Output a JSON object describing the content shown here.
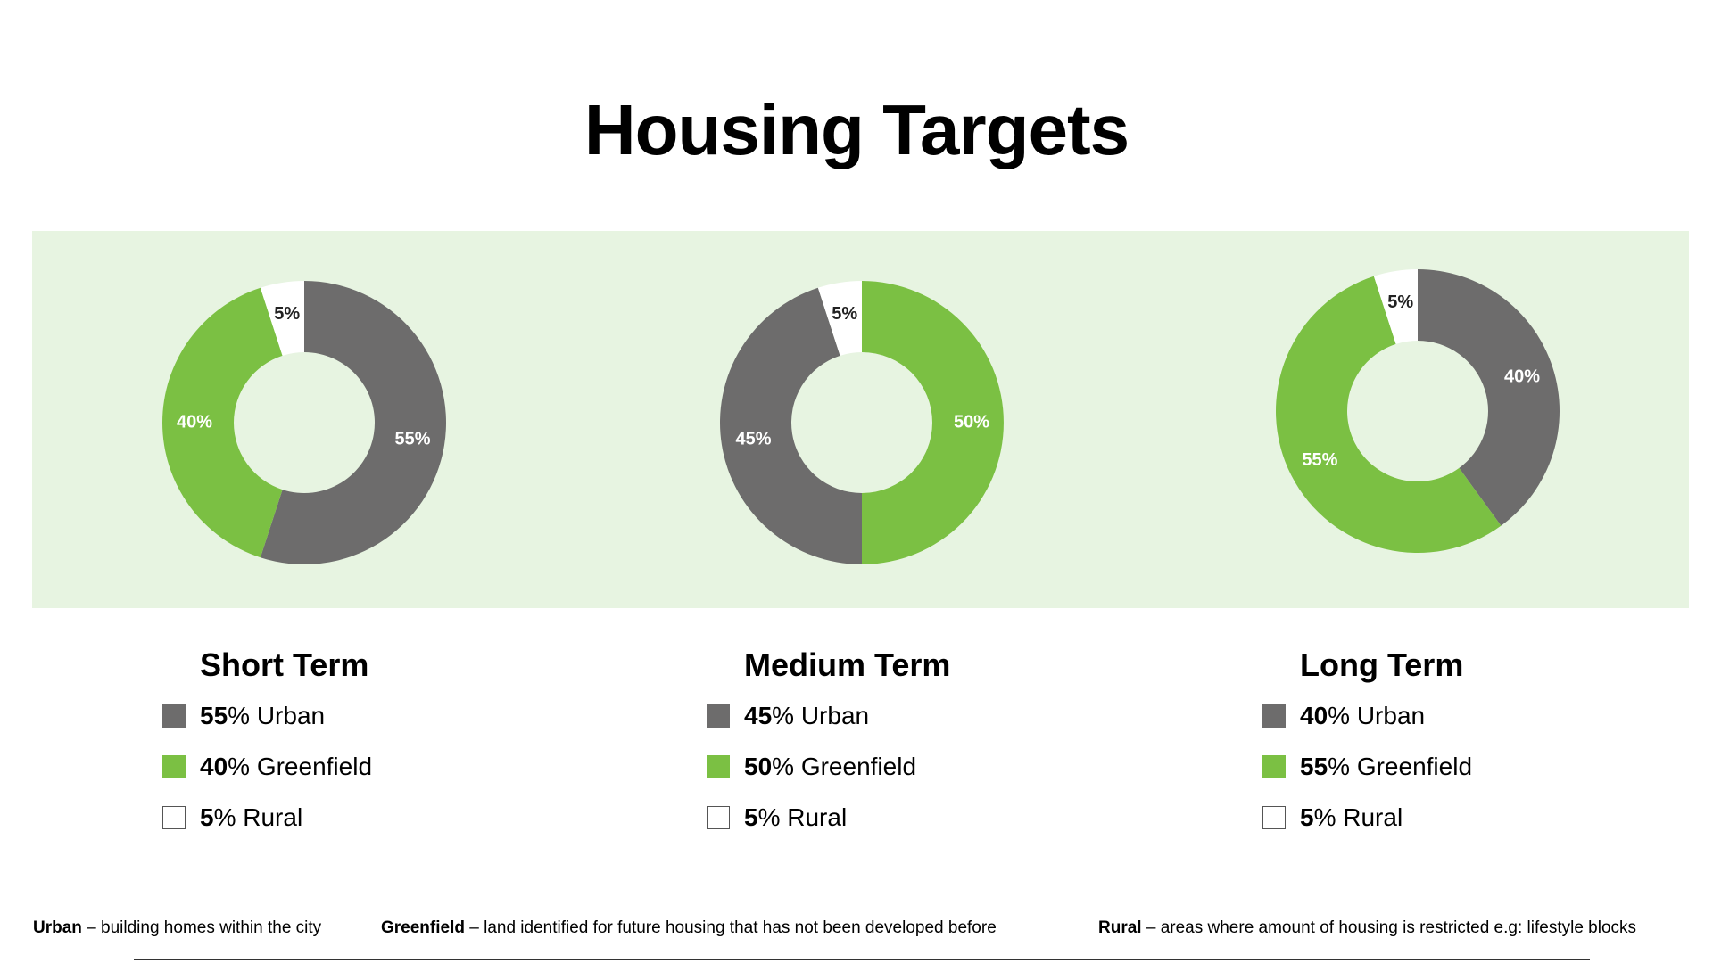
{
  "title": "Housing Targets",
  "colors": {
    "urban": "#6d6c6c",
    "greenfield": "#7bc043",
    "rural": "#ffffff",
    "band": "#e7f4e1"
  },
  "chart_data": [
    {
      "type": "pie",
      "title": "Short Term",
      "categories": [
        "Urban",
        "Greenfield",
        "Rural"
      ],
      "values": [
        55,
        40,
        5
      ],
      "labels": [
        "55%",
        "40%",
        "5%"
      ]
    },
    {
      "type": "pie",
      "title": "Medium Term",
      "categories": [
        "Urban",
        "Greenfield",
        "Rural"
      ],
      "values": [
        45,
        50,
        5
      ],
      "labels": [
        "45%",
        "50%",
        "5%"
      ]
    },
    {
      "type": "pie",
      "title": "Long Term",
      "categories": [
        "Urban",
        "Greenfield",
        "Rural"
      ],
      "values": [
        40,
        55,
        5
      ],
      "labels": [
        "40%",
        "55%",
        "5%"
      ]
    }
  ],
  "legends": [
    {
      "title": "Short Term",
      "items": [
        {
          "pct": "55",
          "text": "% Urban"
        },
        {
          "pct": "40",
          "text": "% Greenfield"
        },
        {
          "pct": "5",
          "text": "% Rural"
        }
      ]
    },
    {
      "title": "Medium Term",
      "items": [
        {
          "pct": "45",
          "text": "% Urban"
        },
        {
          "pct": "50",
          "text": "% Greenfield"
        },
        {
          "pct": "5",
          "text": "% Rural"
        }
      ]
    },
    {
      "title": "Long Term",
      "items": [
        {
          "pct": "40",
          "text": "% Urban"
        },
        {
          "pct": "55",
          "text": "% Greenfield"
        },
        {
          "pct": "5",
          "text": "% Rural"
        }
      ]
    }
  ],
  "definitions": [
    {
      "term": "Urban",
      "text": " – building homes within the city"
    },
    {
      "term": "Greenfield",
      "text": " – land identified for future housing that has not been developed before"
    },
    {
      "term": "Rural",
      "text": " – areas where amount of housing is restricted e.g: lifestyle blocks"
    }
  ]
}
